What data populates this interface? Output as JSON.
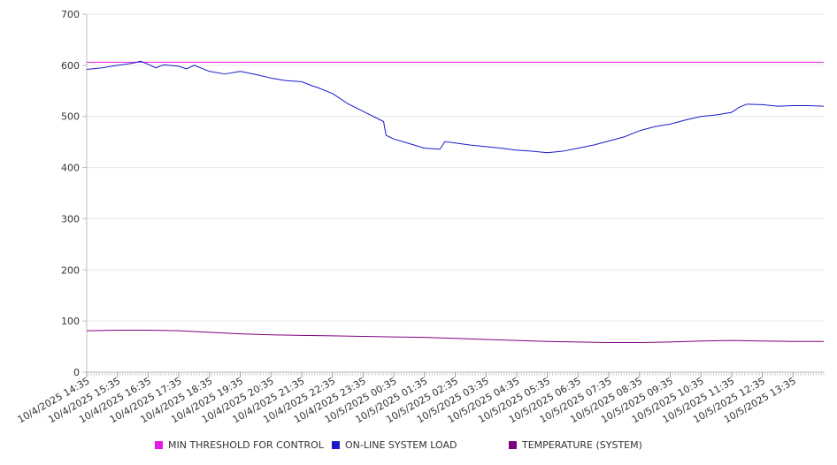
{
  "chart_data": {
    "type": "line",
    "title": "",
    "xlabel": "",
    "ylabel": "",
    "ylim": [
      0,
      700
    ],
    "yticks": [
      0,
      100,
      200,
      300,
      400,
      500,
      600,
      700
    ],
    "grid": true,
    "legend_position": "bottom",
    "x_tick_labels": [
      "10/4/2025 14:35",
      "10/4/2025 15:35",
      "10/4/2025 16:35",
      "10/4/2025 17:35",
      "10/4/2025 18:35",
      "10/4/2025 19:35",
      "10/4/2025 20:35",
      "10/4/2025 21:35",
      "10/4/2025 22:35",
      "10/4/2025 23:35",
      "10/5/2025 00:35",
      "10/5/2025 01:35",
      "10/5/2025 02:35",
      "10/5/2025 03:35",
      "10/5/2025 04:35",
      "10/5/2025 05:35",
      "10/5/2025 06:35",
      "10/5/2025 07:35",
      "10/5/2025 08:35",
      "10/5/2025 09:35",
      "10/5/2025 10:35",
      "10/5/2025 11:35",
      "10/5/2025 12:35",
      "10/5/2025 13:35"
    ],
    "x_range": [
      "10/4/2025 14:35",
      "10/5/2025 14:35"
    ],
    "series": [
      {
        "name": "MIN THRESHOLD FOR CONTROL",
        "color": "#e619e6",
        "x": [
          "10/4/2025 14:35",
          "10/5/2025 14:35"
        ],
        "y": [
          606,
          606
        ]
      },
      {
        "name": "ON-LINE SYSTEM LOAD",
        "color": "#1a1acc",
        "x": [
          "10/4/2025 14:35",
          "10/4/2025 15:05",
          "10/4/2025 15:35",
          "10/4/2025 16:05",
          "10/4/2025 16:20",
          "10/4/2025 16:35",
          "10/4/2025 16:50",
          "10/4/2025 17:05",
          "10/4/2025 17:35",
          "10/4/2025 17:50",
          "10/4/2025 18:05",
          "10/4/2025 18:35",
          "10/4/2025 19:05",
          "10/4/2025 19:35",
          "10/4/2025 20:05",
          "10/4/2025 20:35",
          "10/4/2025 21:05",
          "10/4/2025 21:35",
          "10/4/2025 21:55",
          "10/4/2025 22:05",
          "10/4/2025 22:35",
          "10/4/2025 23:05",
          "10/4/2025 23:35",
          "10/5/2025 00:15",
          "10/5/2025 00:20",
          "10/5/2025 00:35",
          "10/5/2025 01:05",
          "10/5/2025 01:35",
          "10/5/2025 02:05",
          "10/5/2025 02:15",
          "10/5/2025 02:35",
          "10/5/2025 03:05",
          "10/5/2025 03:35",
          "10/5/2025 04:05",
          "10/5/2025 04:35",
          "10/5/2025 05:05",
          "10/5/2025 05:35",
          "10/5/2025 06:05",
          "10/5/2025 06:35",
          "10/5/2025 07:05",
          "10/5/2025 07:35",
          "10/5/2025 08:05",
          "10/5/2025 08:35",
          "10/5/2025 09:05",
          "10/5/2025 09:35",
          "10/5/2025 10:05",
          "10/5/2025 10:35",
          "10/5/2025 11:05",
          "10/5/2025 11:35",
          "10/5/2025 11:50",
          "10/5/2025 12:05",
          "10/5/2025 12:35",
          "10/5/2025 13:05",
          "10/5/2025 13:35",
          "10/5/2025 14:05",
          "10/5/2025 14:35"
        ],
        "y": [
          592,
          595,
          600,
          604,
          608,
          602,
          595,
          601,
          598,
          593,
          600,
          588,
          583,
          588,
          582,
          575,
          570,
          568,
          560,
          557,
          545,
          525,
          510,
          490,
          463,
          456,
          447,
          438,
          436,
          451,
          448,
          444,
          441,
          438,
          434,
          432,
          429,
          432,
          438,
          444,
          452,
          460,
          472,
          480,
          485,
          493,
          500,
          503,
          508,
          518,
          524,
          523,
          520,
          521,
          521,
          520
        ]
      },
      {
        "name": "TEMPERATURE (SYSTEM)",
        "color": "#800080",
        "x": [
          "10/4/2025 14:35",
          "10/4/2025 15:35",
          "10/4/2025 16:35",
          "10/4/2025 17:35",
          "10/4/2025 18:35",
          "10/4/2025 19:35",
          "10/4/2025 20:35",
          "10/4/2025 21:35",
          "10/4/2025 22:35",
          "10/4/2025 23:35",
          "10/5/2025 00:35",
          "10/5/2025 01:35",
          "10/5/2025 02:35",
          "10/5/2025 03:35",
          "10/5/2025 04:35",
          "10/5/2025 05:35",
          "10/5/2025 06:35",
          "10/5/2025 07:35",
          "10/5/2025 08:35",
          "10/5/2025 09:35",
          "10/5/2025 10:35",
          "10/5/2025 11:35",
          "10/5/2025 12:35",
          "10/5/2025 13:35",
          "10/5/2025 14:35"
        ],
        "y": [
          81,
          82,
          82,
          81,
          78,
          75,
          73,
          72,
          71,
          70,
          69,
          68,
          66,
          64,
          62,
          60,
          59,
          58,
          58,
          59,
          61,
          62,
          61,
          60,
          60
        ]
      }
    ]
  }
}
